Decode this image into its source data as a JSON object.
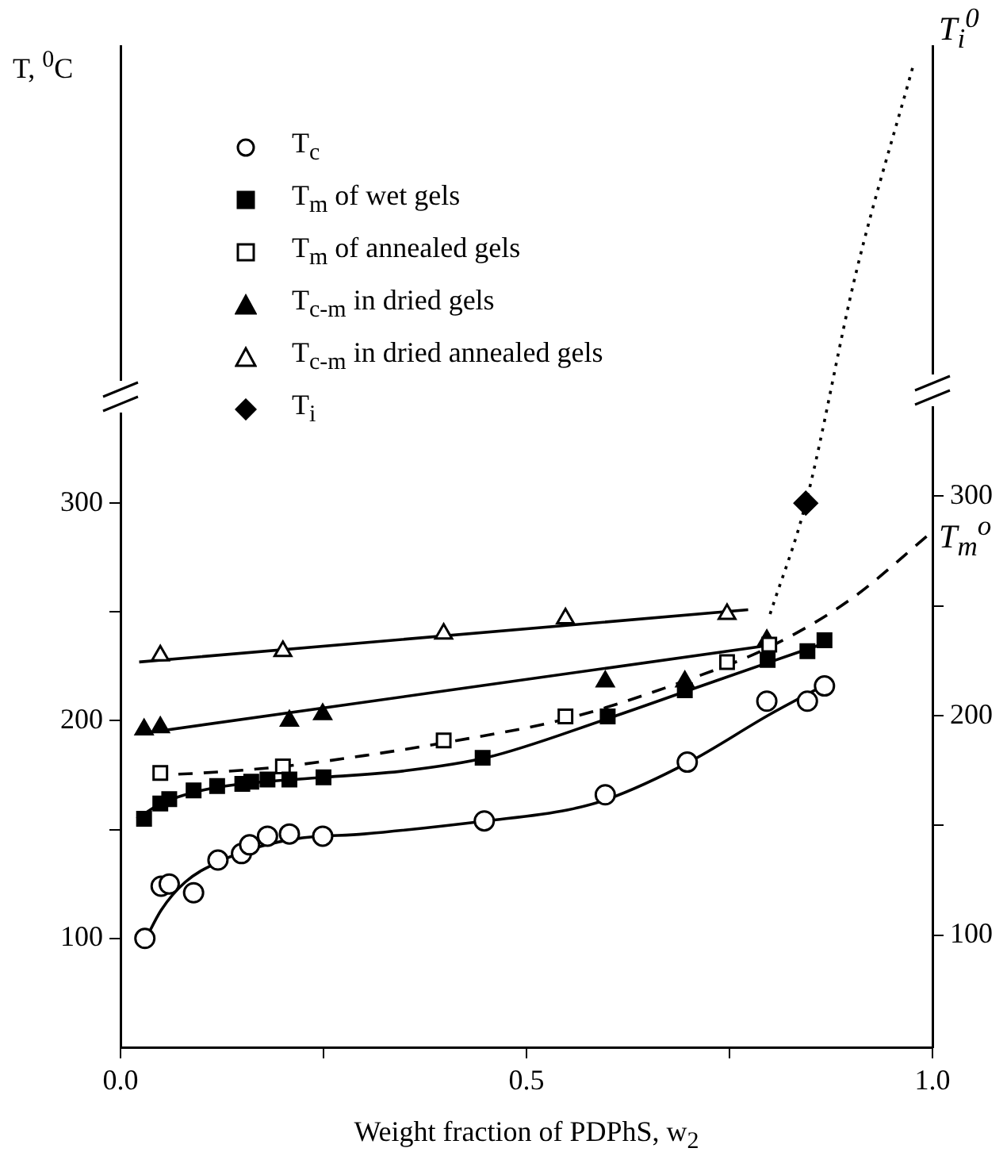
{
  "chart_data": {
    "type": "scatter",
    "xlabel": "Weight fraction of PDPhS, w$_{2}$",
    "ylabel": "T, $^{0}$C",
    "xlim": [
      0,
      1
    ],
    "xticks": [
      {
        "value": 0,
        "label": "0.0"
      },
      {
        "value": 0.25,
        "label": null
      },
      {
        "value": 0.5,
        "label": "0.5"
      },
      {
        "value": 0.75,
        "label": null
      },
      {
        "value": 1,
        "label": "1.0"
      }
    ],
    "ylim": [
      50,
      510
    ],
    "yticks": [
      100,
      {
        "value": 150,
        "label": null
      },
      200,
      {
        "value": 250,
        "label": null
      },
      300
    ],
    "y2lim": [
      49,
      505
    ],
    "y2ticks": [
      100,
      {
        "value": 150,
        "label": null
      },
      200,
      {
        "value": 250,
        "label": null
      },
      300
    ],
    "grid": false,
    "legend": "top left",
    "annotations": [
      "T$_{i}$$^{0}$",
      {
        "text": "T$_{m}$$^{o}$",
        "x": 1,
        "y": 287
      }
    ],
    "series": [
      {
        "name": "T$_{c}$",
        "type": "scatter",
        "marker": "circle",
        "color": "#ffffff",
        "x": [
          0.03,
          0.05,
          0.06,
          0.09,
          0.12,
          0.149,
          0.159,
          0.181,
          0.208,
          0.249,
          0.448,
          0.597,
          0.698,
          0.796,
          0.846,
          0.867
        ],
        "values": [
          100,
          124,
          125,
          121,
          136,
          139,
          143,
          147,
          148,
          147,
          154,
          166,
          181,
          209,
          209,
          216
        ]
      },
      {
        "name": "T$_{m}$ of wet gels",
        "type": "scatter",
        "marker": "square",
        "color": "#000000",
        "x": [
          0.029,
          0.049,
          0.06,
          0.09,
          0.119,
          0.15,
          0.161,
          0.181,
          0.208,
          0.25,
          0.446,
          0.6,
          0.695,
          0.797,
          0.846,
          0.867
        ],
        "values": [
          155,
          162,
          164,
          168,
          170,
          171,
          172,
          173,
          173,
          174,
          183,
          202,
          214,
          228,
          232,
          237
        ]
      },
      {
        "name": "T$_{m}$ of annealed gels",
        "type": "scatter",
        "marker": "square",
        "color": "#ffffff",
        "x": [
          0.049,
          0.2,
          0.398,
          0.548,
          0.747,
          0.799
        ],
        "values": [
          176,
          179,
          191,
          202,
          227,
          235
        ]
      },
      {
        "name": "T$_{c-m}$ in dried gels",
        "type": "scatter",
        "marker": "triangle",
        "color": "#000000",
        "x": [
          0.029,
          0.049,
          0.208,
          0.249,
          0.597,
          0.695,
          0.796
        ],
        "values": [
          196,
          197,
          200,
          203,
          218,
          218,
          237
        ]
      },
      {
        "name": "T$_{c-m}$ in dried annealed gels",
        "type": "scatter",
        "marker": "triangle",
        "color": "#ffffff",
        "x": [
          0.049,
          0.2,
          0.398,
          0.548,
          0.747
        ],
        "values": [
          230,
          232,
          240,
          247,
          249
        ]
      },
      {
        "name": "T$_{i}$",
        "type": "scatter",
        "marker": "diamond",
        "color": "#000000",
        "x": [
          0.844
        ],
        "values": [
          300
        ]
      },
      {
        "type": "line",
        "marker": "none",
        "line_style": "solid",
        "color": "#000000",
        "x": [
          0.03,
          0.05,
          0.08,
          0.12,
          0.17,
          0.22,
          0.3,
          0.45,
          0.55,
          0.6,
          0.7,
          0.8,
          0.87
        ],
        "values": [
          99,
          113,
          126,
          135,
          142,
          146,
          148,
          154,
          159,
          164,
          181,
          203,
          217
        ]
      },
      {
        "type": "line",
        "marker": "none",
        "line_style": "solid",
        "color": "#000000",
        "x": [
          0.02,
          0.05,
          0.1,
          0.15,
          0.25,
          0.35,
          0.45,
          0.6,
          0.7,
          0.8,
          0.87
        ],
        "values": [
          155,
          162,
          168,
          171,
          174,
          177,
          183,
          201,
          214,
          227,
          236
        ]
      },
      {
        "type": "line",
        "marker": "none",
        "line_style": "dashed",
        "color": "#000000",
        "x": [
          0.04,
          0.1,
          0.2,
          0.3,
          0.4,
          0.55,
          0.7,
          0.8,
          0.9,
          1.0
        ],
        "values": [
          175,
          176,
          179,
          184,
          190,
          201,
          219,
          234,
          256,
          287
        ]
      },
      {
        "type": "line",
        "marker": "none",
        "line_style": "solid",
        "color": "#000000",
        "x": [
          0.023,
          0.805
        ],
        "values": [
          194,
          235
        ]
      },
      {
        "type": "line",
        "marker": "none",
        "line_style": "solid",
        "color": "#000000",
        "x": [
          0.023,
          0.773
        ],
        "values": [
          227,
          251
        ]
      },
      {
        "type": "line",
        "marker": "none",
        "line_style": "dotted",
        "color": "#000000",
        "x": [
          0.8,
          0.844,
          0.906,
          0.977
        ],
        "values": [
          249,
          300,
          406,
          502
        ]
      }
    ]
  }
}
